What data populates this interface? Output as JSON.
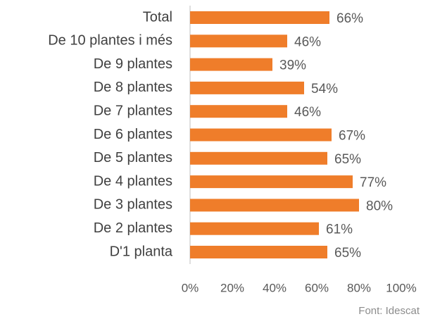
{
  "chart_data": {
    "type": "bar",
    "orientation": "horizontal",
    "categories": [
      "Total",
      "De 10 plantes i més",
      "De 9 plantes",
      "De 8 plantes",
      "De 7 plantes",
      "De 6 plantes",
      "De 5 plantes",
      "De 4 plantes",
      "De 3 plantes",
      "De 2 plantes",
      "D'1 planta"
    ],
    "values": [
      66,
      46,
      39,
      54,
      46,
      67,
      65,
      77,
      80,
      61,
      65
    ],
    "value_labels": [
      "66%",
      "46%",
      "39%",
      "54%",
      "46%",
      "67%",
      "65%",
      "77%",
      "80%",
      "61%",
      "65%"
    ],
    "color": "#ef7d2a",
    "xlim": [
      0,
      100
    ],
    "xticks": [
      {
        "value": 0,
        "label": "0%"
      },
      {
        "value": 20,
        "label": "20%"
      },
      {
        "value": 40,
        "label": "40%"
      },
      {
        "value": 60,
        "label": "60%"
      },
      {
        "value": 80,
        "label": "80%"
      },
      {
        "value": 100,
        "label": "100%"
      }
    ],
    "grid": false,
    "source": "Font: Idescat"
  }
}
